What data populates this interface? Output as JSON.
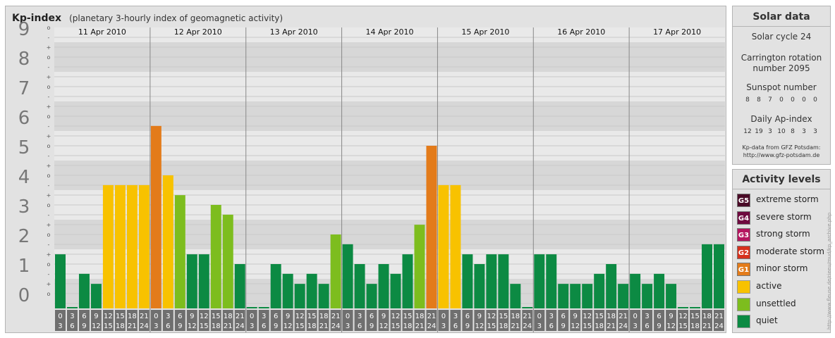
{
  "header": {
    "title": "Kp-index",
    "subtitle": "(planetary 3-hourly index of geomagnetic activity)"
  },
  "solar": {
    "title": "Solar data",
    "cycle": "Solar cycle 24",
    "carrington_line1": "Carrington rotation",
    "carrington_line2": "number 2095",
    "sunspot_label": "Sunspot number",
    "sunspot_values": [
      8,
      8,
      7,
      0,
      0,
      0,
      0
    ],
    "ap_label": "Daily Ap-index",
    "ap_values": [
      12,
      19,
      3,
      10,
      8,
      3,
      3
    ],
    "credit_line1": "Kp-data from GFZ Potsdam:",
    "credit_line2": "http://www.gfz-potsdam.de"
  },
  "activity": {
    "title": "Activity levels",
    "levels": [
      {
        "code": "G5",
        "label": "extreme storm",
        "color": "#4a0a26"
      },
      {
        "code": "G4",
        "label": "severe storm",
        "color": "#6e0a3f"
      },
      {
        "code": "G3",
        "label": "strong storm",
        "color": "#b5155f"
      },
      {
        "code": "G2",
        "label": "moderate storm",
        "color": "#d7311d"
      },
      {
        "code": "G1",
        "label": "minor storm",
        "color": "#e37b1a"
      },
      {
        "code": "",
        "label": "active",
        "color": "#f8c200"
      },
      {
        "code": "",
        "label": "unsettled",
        "color": "#7dbd1e"
      },
      {
        "code": "",
        "label": "quiet",
        "color": "#0c8a43"
      }
    ]
  },
  "watermark": "http://www.fleuse.de/rieeu/mud/kp_archive.php",
  "chart_data": {
    "type": "bar",
    "title": "Kp-index",
    "ylim": [
      0,
      9
    ],
    "y_ticks": [
      "0",
      "1",
      "2",
      "3",
      "4",
      "5",
      "6",
      "7",
      "8",
      "9"
    ],
    "fine_ticks": [
      "-",
      "o",
      "+"
    ],
    "days": [
      "11 Apr 2010",
      "12 Apr 2010",
      "13 Apr 2010",
      "14 Apr 2010",
      "15 Apr 2010",
      "16 Apr 2010",
      "17 Apr 2010"
    ],
    "hour_start": [
      "0",
      "3",
      "6",
      "9",
      "12",
      "15",
      "18",
      "21"
    ],
    "hour_end": [
      "3",
      "6",
      "9",
      "12",
      "15",
      "18",
      "21",
      "24"
    ],
    "values": [
      1.33,
      0,
      0.67,
      0.33,
      3.67,
      3.67,
      3.67,
      3.67,
      5.67,
      4,
      3.33,
      1.33,
      1.33,
      3,
      2.67,
      1,
      0,
      0,
      1,
      0.67,
      0.33,
      0.67,
      0.33,
      2,
      1.67,
      1,
      0.33,
      1,
      0.67,
      1.33,
      2.33,
      5,
      3.67,
      3.67,
      1.33,
      1,
      1.33,
      1.33,
      0.33,
      0,
      1.33,
      1.33,
      0.33,
      0.33,
      0.33,
      0.67,
      1,
      0.33,
      0.67,
      0.33,
      0.67,
      0.33,
      0,
      0,
      1.67,
      1.67
    ]
  }
}
